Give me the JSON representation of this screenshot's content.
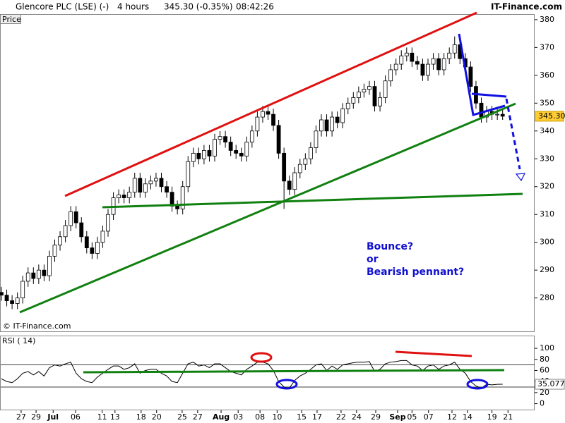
{
  "header": {
    "name": "Glencore PLC (LSE) (-)",
    "interval": "4 hours",
    "quote": "345.30 (-0.35%)",
    "time": "08:42:26",
    "brand": "IT-Finance.com"
  },
  "chart_data": [
    {
      "type": "candlestick",
      "y_label": "Price",
      "copyright": "© IT-Finance.com",
      "annotations": [
        "Bounce?",
        "or",
        "Bearish pennant?"
      ],
      "up_color": "#ffffff",
      "down_color": "#000000",
      "open": [
        282,
        281,
        279,
        278,
        280,
        286,
        289,
        287,
        290,
        288,
        295,
        299,
        302,
        306,
        311,
        307,
        302,
        298,
        296,
        300,
        304,
        310,
        316,
        317,
        316,
        318,
        323,
        318,
        321,
        322,
        323,
        320,
        318,
        313,
        312,
        320,
        329,
        332,
        330,
        333,
        331,
        337,
        338,
        336,
        333,
        332,
        331,
        336,
        340,
        345,
        347,
        346,
        342,
        332,
        322,
        319,
        325,
        328,
        330,
        334,
        340,
        344,
        340,
        345,
        343,
        348,
        350,
        352,
        354,
        355,
        356,
        349,
        352,
        358,
        362,
        364,
        367,
        368,
        365,
        364,
        360,
        364,
        366,
        362,
        366,
        368,
        371,
        366,
        363,
        356,
        350,
        345,
        347,
        346,
        346
      ],
      "high": [
        284,
        283,
        281,
        282,
        288,
        291,
        291,
        292,
        292,
        297,
        301,
        304,
        308,
        313,
        313,
        309,
        304,
        300,
        302,
        306,
        312,
        318,
        319,
        319,
        320,
        325,
        325,
        323,
        324,
        325,
        325,
        322,
        320,
        315,
        322,
        331,
        334,
        334,
        335,
        335,
        339,
        340,
        340,
        338,
        335,
        334,
        338,
        342,
        347,
        349,
        349,
        348,
        344,
        334,
        324,
        327,
        330,
        332,
        336,
        342,
        346,
        346,
        347,
        347,
        350,
        352,
        354,
        356,
        357,
        358,
        358,
        354,
        360,
        364,
        366,
        369,
        370,
        370,
        367,
        366,
        366,
        368,
        368,
        368,
        370,
        374,
        373,
        368,
        365,
        358,
        352,
        349,
        349,
        348,
        348
      ],
      "low": [
        279,
        277,
        276,
        276,
        278,
        284,
        285,
        285,
        286,
        286,
        293,
        297,
        300,
        304,
        305,
        300,
        296,
        294,
        294,
        298,
        302,
        308,
        314,
        314,
        314,
        316,
        316,
        316,
        319,
        320,
        318,
        316,
        311,
        310,
        310,
        318,
        327,
        328,
        328,
        329,
        329,
        335,
        334,
        331,
        330,
        329,
        329,
        334,
        338,
        343,
        344,
        340,
        330,
        312,
        317,
        317,
        323,
        326,
        328,
        332,
        338,
        338,
        338,
        341,
        341,
        346,
        348,
        350,
        352,
        353,
        347,
        347,
        350,
        356,
        360,
        362,
        365,
        363,
        362,
        358,
        358,
        362,
        360,
        360,
        364,
        366,
        364,
        361,
        354,
        348,
        343,
        343,
        344,
        344,
        344
      ],
      "close": [
        281,
        279,
        278,
        280,
        286,
        289,
        287,
        290,
        288,
        295,
        299,
        302,
        306,
        311,
        307,
        302,
        298,
        296,
        300,
        304,
        310,
        316,
        317,
        316,
        318,
        323,
        318,
        321,
        322,
        323,
        320,
        318,
        313,
        312,
        320,
        329,
        332,
        330,
        333,
        331,
        337,
        338,
        336,
        333,
        332,
        331,
        336,
        340,
        345,
        347,
        346,
        342,
        332,
        322,
        319,
        325,
        328,
        330,
        334,
        340,
        344,
        340,
        345,
        343,
        348,
        350,
        352,
        354,
        355,
        356,
        349,
        352,
        358,
        362,
        364,
        367,
        368,
        365,
        364,
        360,
        364,
        366,
        362,
        366,
        368,
        371,
        366,
        363,
        356,
        350,
        345,
        347,
        346,
        346,
        345.3
      ],
      "last_label": "345.30",
      "ylim": [
        268,
        382
      ],
      "yticks": [
        280,
        290,
        300,
        310,
        320,
        330,
        340,
        350,
        360,
        370,
        380
      ],
      "xlim": [
        0,
        100
      ],
      "xticks": [
        {
          "value": 3.7,
          "label": "27"
        },
        {
          "value": 6.5,
          "label": "29"
        },
        {
          "value": 9.7,
          "label": "Jul"
        },
        {
          "value": 13.9,
          "label": "06"
        },
        {
          "value": 18.9,
          "label": "11"
        },
        {
          "value": 21.3,
          "label": "13"
        },
        {
          "value": 26.2,
          "label": "18"
        },
        {
          "value": 29.1,
          "label": "20"
        },
        {
          "value": 33.9,
          "label": "25"
        },
        {
          "value": 36.8,
          "label": "27"
        },
        {
          "value": 41.2,
          "label": "Aug"
        },
        {
          "value": 44.4,
          "label": "03"
        },
        {
          "value": 48.5,
          "label": "08"
        },
        {
          "value": 51.7,
          "label": "10"
        },
        {
          "value": 56.3,
          "label": "15"
        },
        {
          "value": 59.2,
          "label": "17"
        },
        {
          "value": 63.7,
          "label": "22"
        },
        {
          "value": 66.6,
          "label": "24"
        },
        {
          "value": 70.2,
          "label": "29"
        },
        {
          "value": 74.3,
          "label": "Sep"
        },
        {
          "value": 77,
          "label": "05"
        },
        {
          "value": 80.1,
          "label": "07"
        },
        {
          "value": 84.5,
          "label": "12"
        },
        {
          "value": 87.4,
          "label": "14"
        },
        {
          "value": 92,
          "label": "19"
        },
        {
          "value": 95,
          "label": "21"
        }
      ]
    },
    {
      "type": "line",
      "title": "RSI ( 14)",
      "color": "#000000",
      "values": [
        45,
        40,
        38,
        45,
        55,
        58,
        52,
        58,
        50,
        65,
        70,
        68,
        72,
        75,
        55,
        45,
        40,
        38,
        48,
        55,
        62,
        68,
        68,
        62,
        65,
        72,
        55,
        60,
        62,
        62,
        55,
        50,
        40,
        38,
        55,
        72,
        75,
        68,
        70,
        65,
        72,
        72,
        65,
        58,
        55,
        52,
        62,
        68,
        75,
        75,
        72,
        60,
        40,
        30,
        28,
        42,
        50,
        55,
        62,
        70,
        72,
        60,
        68,
        62,
        70,
        72,
        74,
        75,
        75,
        76,
        58,
        62,
        72,
        75,
        76,
        78,
        78,
        70,
        68,
        60,
        68,
        70,
        62,
        68,
        70,
        75,
        62,
        55,
        40,
        32,
        28,
        35,
        34,
        35,
        35.077
      ],
      "levels": [
        70,
        30
      ],
      "ylim": [
        -12,
        123
      ],
      "yticks": [
        0,
        20,
        40,
        60,
        80,
        100
      ]
    }
  ]
}
